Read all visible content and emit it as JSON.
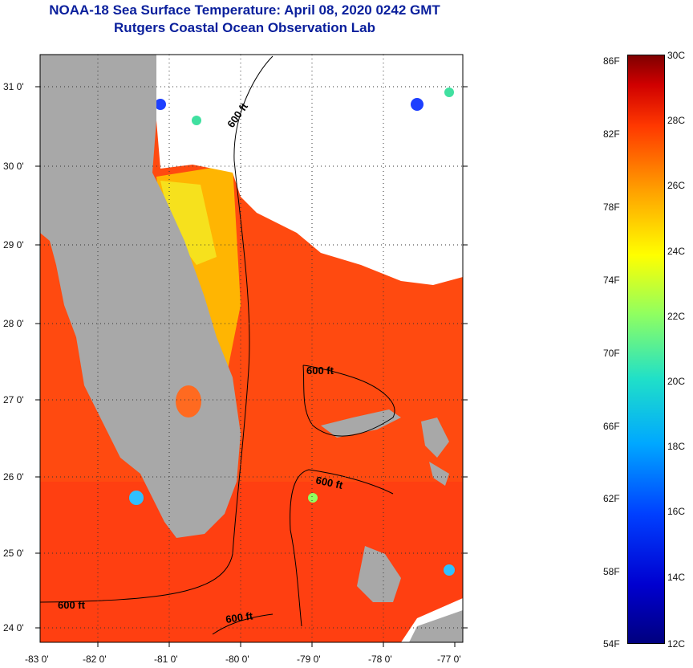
{
  "title": {
    "line1": "NOAA-18 Sea Surface Temperature:  April 08, 2020 0242 GMT",
    "line2": "Rutgers Coastal Ocean Observation Lab"
  },
  "map": {
    "latitudes": [
      "31 0'",
      "30 0'",
      "29 0'",
      "28 0'",
      "27 0'",
      "26 0'",
      "25 0'",
      "24 0'"
    ],
    "longitudes": [
      "-83 0'",
      "-82 0'",
      "-81 0'",
      "-80 0'",
      "-79 0'",
      "-78 0'",
      "-77 0'"
    ],
    "contour_labels": [
      "600 ft",
      "600 ft",
      "600 ft",
      "600 ft",
      "600 ft"
    ],
    "colors": {
      "land": "#a8a8a8",
      "cloud": "#ffffff",
      "warm_ocean": "#ff4a10",
      "shelf": "#ffc800"
    }
  },
  "colorbar": {
    "fahrenheit": [
      "86F",
      "82F",
      "78F",
      "74F",
      "70F",
      "66F",
      "62F",
      "58F",
      "54F"
    ],
    "celsius": [
      "30C",
      "28C",
      "26C",
      "24C",
      "22C",
      "20C",
      "18C",
      "16C",
      "14C",
      "12C"
    ]
  }
}
